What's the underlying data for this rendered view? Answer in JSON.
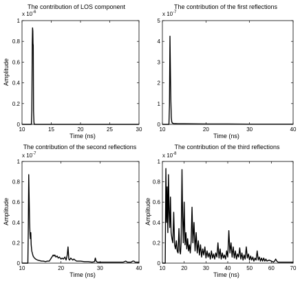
{
  "chart_data": [
    {
      "type": "line",
      "title": "The contribution of LOS component",
      "xlabel": "Time (ns)",
      "ylabel": "Amplitude",
      "xlim": [
        10,
        30
      ],
      "ylim": [
        0,
        1
      ],
      "xticks": [
        10,
        15,
        20,
        25,
        30
      ],
      "yticks": [
        0,
        0.2,
        0.4,
        0.6,
        0.8,
        1
      ],
      "ytick_labels": [
        "0",
        "0.2",
        "0.4",
        "0.6",
        "0.8",
        "1"
      ],
      "exponent_label": {
        "base": "x 10",
        "power": "-6"
      },
      "grid": false,
      "series": [
        {
          "x": [
            10,
            11.6,
            11.68,
            11.75,
            11.8,
            11.85,
            11.88,
            11.92,
            11.97,
            12.04,
            12.1,
            30
          ],
          "y": [
            0,
            0,
            0.14,
            0.78,
            0.93,
            0.9,
            0.78,
            0.76,
            0.13,
            0.02,
            0,
            0
          ]
        }
      ]
    },
    {
      "type": "line",
      "title": "The contribution of the first reflections",
      "xlabel": "Time (ns)",
      "ylabel": "",
      "xlim": [
        10,
        40
      ],
      "ylim": [
        0,
        5
      ],
      "xticks": [
        10,
        20,
        30,
        40
      ],
      "yticks": [
        0,
        1,
        2,
        3,
        4,
        5
      ],
      "ytick_labels": [
        "0",
        "1",
        "2",
        "3",
        "4",
        "5"
      ],
      "exponent_label": {
        "base": "x 10",
        "power": "-7"
      },
      "grid": false,
      "series": [
        {
          "x": [
            10,
            11.5,
            11.62,
            11.74,
            11.86,
            11.95,
            12.05,
            12.15,
            12.3,
            12.6,
            13.5,
            15,
            20,
            25,
            30,
            35.5,
            40
          ],
          "y": [
            0,
            0,
            0.9,
            4.25,
            2.3,
            1.1,
            0.32,
            0.12,
            0.06,
            0.04,
            0.03,
            0.03,
            0.02,
            0.02,
            0.01,
            0.01,
            0.01
          ]
        }
      ]
    },
    {
      "type": "line",
      "title": "The contribution of the second reflections",
      "xlabel": "Time (ns)",
      "ylabel": "Amplitude",
      "xlim": [
        10,
        40
      ],
      "ylim": [
        0,
        1
      ],
      "xticks": [
        10,
        20,
        30,
        40
      ],
      "yticks": [
        0,
        0.2,
        0.4,
        0.6,
        0.8,
        1
      ],
      "ytick_labels": [
        "0",
        "0.2",
        "0.4",
        "0.6",
        "0.8",
        "1"
      ],
      "exponent_label": {
        "base": "x 10",
        "power": "-7"
      },
      "grid": false,
      "series": [
        {
          "x": [
            10,
            11.5,
            11.6,
            11.72,
            11.85,
            11.95,
            12.05,
            12.15,
            12.25,
            12.35,
            12.5,
            12.7,
            12.85,
            13.0,
            13.2,
            13.5,
            14,
            14.5,
            15,
            15.5,
            16,
            16.5,
            17,
            17.5,
            18,
            18.2,
            18.4,
            18.7,
            19,
            19.3,
            19.6,
            20,
            20.3,
            20.6,
            21,
            21.3,
            21.6,
            21.8,
            22,
            22.2,
            22.5,
            23,
            23.3,
            23.6,
            24,
            24.5,
            25,
            26,
            27,
            28,
            28.6,
            28.8,
            29,
            29.3,
            30,
            31,
            32,
            33,
            34,
            35,
            36,
            36.6,
            37,
            37.5,
            38,
            38.4,
            38.7,
            39,
            39.5,
            40
          ],
          "y": [
            0,
            0,
            0.3,
            0.87,
            0.6,
            0.4,
            0.28,
            0.24,
            0.3,
            0.18,
            0.12,
            0.09,
            0.07,
            0.06,
            0.05,
            0.04,
            0.03,
            0.025,
            0.02,
            0.02,
            0.015,
            0.02,
            0.02,
            0.05,
            0.08,
            0.07,
            0.08,
            0.06,
            0.07,
            0.05,
            0.06,
            0.04,
            0.05,
            0.04,
            0.06,
            0.03,
            0.08,
            0.16,
            0.04,
            0.03,
            0.05,
            0.03,
            0.04,
            0.03,
            0.02,
            0.02,
            0.02,
            0.015,
            0.015,
            0.01,
            0.015,
            0.05,
            0.02,
            0.01,
            0.01,
            0.01,
            0.01,
            0.01,
            0.01,
            0.01,
            0.01,
            0.02,
            0.01,
            0.01,
            0.01,
            0.02,
            0.02,
            0.01,
            0.01,
            0.01
          ]
        }
      ]
    },
    {
      "type": "line",
      "title": "The contribution of the third reflections",
      "xlabel": "Time (ns)",
      "ylabel": "Amplitude",
      "xlim": [
        10,
        70
      ],
      "ylim": [
        0,
        1
      ],
      "xticks": [
        10,
        20,
        30,
        40,
        50,
        60,
        70
      ],
      "yticks": [
        0,
        0.2,
        0.4,
        0.6,
        0.8,
        1
      ],
      "ytick_labels": [
        "0",
        "0.2",
        "0.4",
        "0.6",
        "0.8",
        "1"
      ],
      "exponent_label": {
        "base": "x 10",
        "power": "-8"
      },
      "grid": false,
      "series": [
        {
          "x": [
            10,
            11.3,
            11.6,
            11.9,
            12.2,
            12.5,
            12.8,
            13.1,
            13.4,
            13.7,
            14,
            14.4,
            14.8,
            15.2,
            15.6,
            16,
            16.4,
            16.8,
            17.2,
            17.6,
            18,
            18.3,
            18.6,
            19,
            19.3,
            19.6,
            20,
            20.4,
            20.8,
            21.2,
            21.6,
            22,
            22.4,
            22.8,
            23.2,
            23.6,
            24,
            24.5,
            25,
            25.5,
            26,
            26.5,
            27,
            27.5,
            28,
            28.5,
            29,
            29.5,
            30,
            30.5,
            31,
            31.5,
            32,
            32.5,
            33,
            33.5,
            34,
            34.5,
            35,
            35.5,
            36,
            36.5,
            37,
            37.5,
            38,
            38.5,
            39,
            39.5,
            40,
            40.5,
            41,
            41.5,
            42,
            42.5,
            43,
            43.5,
            44,
            44.5,
            45,
            45.5,
            46,
            46.5,
            47,
            47.5,
            48,
            48.5,
            49,
            49.5,
            50,
            50.5,
            51,
            51.5,
            52,
            52.5,
            53,
            53.5,
            54,
            54.5,
            55,
            55.5,
            56,
            56.5,
            57,
            57.5,
            58,
            59,
            60,
            61,
            61.5,
            62,
            62.5,
            63,
            64,
            66,
            68,
            70
          ],
          "y": [
            0,
            0,
            0.93,
            0.4,
            0.75,
            0.3,
            0.87,
            0.5,
            0.35,
            0.65,
            0.3,
            0.24,
            0.2,
            0.5,
            0.18,
            0.14,
            0.22,
            0.12,
            0.1,
            0.34,
            0.12,
            0.09,
            0.2,
            0.92,
            0.45,
            0.2,
            0.6,
            0.18,
            0.3,
            0.14,
            0.24,
            0.12,
            0.18,
            0.1,
            0.22,
            0.55,
            0.2,
            0.4,
            0.12,
            0.3,
            0.1,
            0.22,
            0.08,
            0.18,
            0.06,
            0.14,
            0.08,
            0.16,
            0.05,
            0.12,
            0.06,
            0.1,
            0.04,
            0.12,
            0.05,
            0.09,
            0.04,
            0.1,
            0.06,
            0.2,
            0.05,
            0.14,
            0.04,
            0.1,
            0.05,
            0.08,
            0.04,
            0.12,
            0.06,
            0.32,
            0.1,
            0.2,
            0.06,
            0.16,
            0.05,
            0.12,
            0.04,
            0.09,
            0.06,
            0.15,
            0.04,
            0.1,
            0.03,
            0.08,
            0.04,
            0.16,
            0.05,
            0.09,
            0.03,
            0.07,
            0.03,
            0.06,
            0.02,
            0.05,
            0.03,
            0.12,
            0.03,
            0.06,
            0.02,
            0.05,
            0.02,
            0.05,
            0.02,
            0.04,
            0.02,
            0.03,
            0.02,
            0.01,
            0.02,
            0.04,
            0.02,
            0.01,
            0.01,
            0.01,
            0.01,
            0.01
          ]
        }
      ]
    }
  ]
}
